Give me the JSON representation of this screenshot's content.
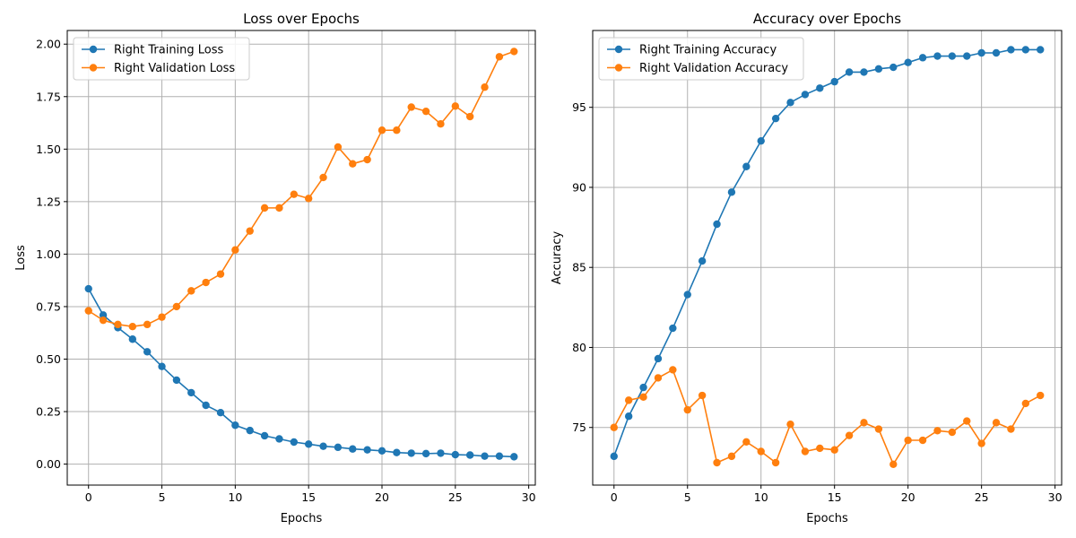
{
  "chart_data": [
    {
      "type": "line",
      "title": "Loss over Epochs",
      "xlabel": "Epochs",
      "ylabel": "Loss",
      "x": [
        0,
        1,
        2,
        3,
        4,
        5,
        6,
        7,
        8,
        9,
        10,
        11,
        12,
        13,
        14,
        15,
        16,
        17,
        18,
        19,
        20,
        21,
        22,
        23,
        24,
        25,
        26,
        27,
        28,
        29
      ],
      "xlim": [
        -1.45,
        30.45
      ],
      "ylim": [
        -0.1,
        2.065
      ],
      "xticks": [
        0,
        5,
        10,
        15,
        20,
        25,
        30
      ],
      "yticks": [
        0.0,
        0.25,
        0.5,
        0.75,
        1.0,
        1.25,
        1.5,
        1.75,
        2.0
      ],
      "ytick_labels": [
        "0.00",
        "0.25",
        "0.50",
        "0.75",
        "1.00",
        "1.25",
        "1.50",
        "1.75",
        "2.00"
      ],
      "grid": true,
      "legend_position": "top-left",
      "series": [
        {
          "name": "Right Training Loss",
          "color": "#1f77b4",
          "values": [
            0.835,
            0.71,
            0.65,
            0.595,
            0.535,
            0.465,
            0.4,
            0.34,
            0.28,
            0.245,
            0.185,
            0.16,
            0.135,
            0.12,
            0.105,
            0.095,
            0.085,
            0.08,
            0.072,
            0.068,
            0.063,
            0.055,
            0.052,
            0.05,
            0.052,
            0.045,
            0.043,
            0.038,
            0.038,
            0.035
          ]
        },
        {
          "name": "Right Validation Loss",
          "color": "#ff7f0e",
          "values": [
            0.73,
            0.685,
            0.665,
            0.655,
            0.665,
            0.7,
            0.75,
            0.825,
            0.865,
            0.905,
            1.02,
            1.11,
            1.22,
            1.22,
            1.285,
            1.265,
            1.365,
            1.51,
            1.43,
            1.45,
            1.59,
            1.59,
            1.7,
            1.68,
            1.62,
            1.705,
            1.655,
            1.795,
            1.94,
            1.965
          ]
        }
      ]
    },
    {
      "type": "line",
      "title": "Accuracy over Epochs",
      "xlabel": "Epochs",
      "ylabel": "Accuracy",
      "x": [
        0,
        1,
        2,
        3,
        4,
        5,
        6,
        7,
        8,
        9,
        10,
        11,
        12,
        13,
        14,
        15,
        16,
        17,
        18,
        19,
        20,
        21,
        22,
        23,
        24,
        25,
        26,
        27,
        28,
        29
      ],
      "xlim": [
        -1.45,
        30.45
      ],
      "ylim": [
        71.4,
        99.8
      ],
      "xticks": [
        0,
        5,
        10,
        15,
        20,
        25,
        30
      ],
      "yticks": [
        75,
        80,
        85,
        90,
        95
      ],
      "ytick_labels": [
        "75",
        "80",
        "85",
        "90",
        "95"
      ],
      "grid": true,
      "legend_position": "top-left",
      "series": [
        {
          "name": "Right Training Accuracy",
          "color": "#1f77b4",
          "values": [
            73.2,
            75.7,
            77.5,
            79.3,
            81.2,
            83.3,
            85.4,
            87.7,
            89.7,
            91.3,
            92.9,
            94.3,
            95.3,
            95.8,
            96.2,
            96.6,
            97.2,
            97.2,
            97.4,
            97.5,
            97.8,
            98.1,
            98.2,
            98.2,
            98.2,
            98.4,
            98.4,
            98.6,
            98.6,
            98.6
          ]
        },
        {
          "name": "Right Validation Accuracy",
          "color": "#ff7f0e",
          "values": [
            75.0,
            76.7,
            76.9,
            78.1,
            78.6,
            76.1,
            77.0,
            72.8,
            73.2,
            74.1,
            73.5,
            72.8,
            75.2,
            73.5,
            73.7,
            73.6,
            74.5,
            75.3,
            74.9,
            72.7,
            74.2,
            74.2,
            74.8,
            74.7,
            75.4,
            74.0,
            75.3,
            74.9,
            76.5,
            77.0
          ]
        }
      ]
    }
  ]
}
